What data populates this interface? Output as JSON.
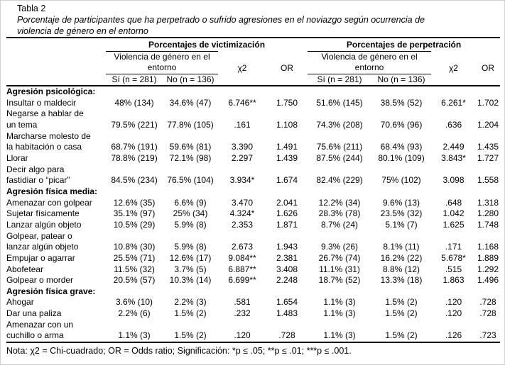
{
  "page": {
    "title": "Tabla 2",
    "caption": "Porcentaje de participantes que ha perpetrado o sufrido agresiones en el noviazgo según ocurrencia de\nviolencia de género en el entorno",
    "note": "Nota: χ2 = Chi-cuadrado; OR = Odds ratio; Significación: *p ≤ .05; **p ≤ .01; ***p ≤ .001."
  },
  "table": {
    "victimization_header": "Porcentajes de victimización",
    "perpetration_header": "Porcentajes de perpetración",
    "environment_spanner": "Violencia de género en el\nentorno",
    "chi_label": "χ2",
    "or_label": "OR",
    "yes_label": "Sí (n = 281)",
    "no_label": "No (n = 136)",
    "sections": [
      {
        "label": "Agresión psicológica:",
        "rows": [
          {
            "label": "Insultar o maldecir",
            "cells": [
              "48% (134)",
              "34.6% (47)",
              "6.746**",
              "1.750",
              "51.6% (145)",
              "38.5% (52)",
              "6.261*",
              "1.702"
            ]
          },
          {
            "label": "Negarse a hablar de\nun tema",
            "cells": [
              "79.5% (221)",
              "77.8% (105)",
              ".161",
              "1.108",
              "74.3% (208)",
              "70.6% (96)",
              ".636",
              "1.204"
            ]
          },
          {
            "label": "Marcharse molesto de\nla habitación o casa",
            "cells": [
              "68.7% (191)",
              "59.6% (81)",
              "3.390",
              "1.491",
              "75.6% (211)",
              "68.4% (93)",
              "2.449",
              "1.435"
            ]
          },
          {
            "label": "Llorar",
            "cells": [
              "78.8% (219)",
              "72.1% (98)",
              "2.297",
              "1.439",
              "87.5% (244)",
              "80.1% (109)",
              "3.843*",
              "1.727"
            ]
          },
          {
            "label": "Decir algo para\nfastidiar o “picar”",
            "cells": [
              "84.5% (234)",
              "76.5% (104)",
              "3.934*",
              "1.674",
              "82.4% (229)",
              "75% (102)",
              "3.098",
              "1.558"
            ]
          }
        ]
      },
      {
        "label": "Agresión física media:",
        "rows": [
          {
            "label": "Amenazar con golpear",
            "cells": [
              "12.6% (35)",
              "6.6% (9)",
              "3.470",
              "2.041",
              "12.2% (34)",
              "9.6% (13)",
              ".648",
              "1.318"
            ]
          },
          {
            "label": "Sujetar físicamente",
            "cells": [
              "35.1% (97)",
              "25% (34)",
              "4.324*",
              "1.626",
              "28.3% (78)",
              "23.5% (32)",
              "1.042",
              "1.280"
            ]
          },
          {
            "label": "Lanzar algún objeto",
            "cells": [
              "10.5% (29)",
              "5.9% (8)",
              "2.353",
              "1.871",
              "8.7% (24)",
              "5.1% (7)",
              "1.625",
              "1.748"
            ]
          },
          {
            "label": "Golpear, patear o\nlanzar algún objeto",
            "cells": [
              "10.8% (30)",
              "5.9% (8)",
              "2.673",
              "1.943",
              "9.3% (26)",
              "8.1% (11)",
              ".171",
              "1.168"
            ]
          },
          {
            "label": "Empujar o agarrar",
            "cells": [
              "25.5% (71)",
              "12.6% (17)",
              "9.084**",
              "2.381",
              "26.7% (74)",
              "16.2% (22)",
              "5.678*",
              "1.889"
            ]
          },
          {
            "label": "Abofetear",
            "cells": [
              "11.5% (32)",
              "3.7% (5)",
              "6.887**",
              "3.408",
              "11.1% (31)",
              "8.8% (12)",
              ".515",
              "1.292"
            ]
          },
          {
            "label": "Golpear o morder",
            "cells": [
              "20.5% (57)",
              "10.3% (14)",
              "6.699**",
              "2.248",
              "18.7% (52)",
              "13.3% (18)",
              "1.863",
              "1.496"
            ]
          }
        ]
      },
      {
        "label": "Agresión física grave:",
        "rows": [
          {
            "label": "Ahogar",
            "cells": [
              "3.6% (10)",
              "2.2% (3)",
              ".581",
              "1.654",
              "1.1% (3)",
              "1.5% (2)",
              ".120",
              ".728"
            ]
          },
          {
            "label": "Dar una paliza",
            "cells": [
              "2.2% (6)",
              "1.5% (2)",
              ".232",
              "1.483",
              "1.1% (3)",
              "1.5% (2)",
              ".120",
              ".728"
            ]
          },
          {
            "label": "Amenazar con un\ncuchillo o arma",
            "cells": [
              "1.1% (3)",
              "1.5% (2)",
              ".120",
              ".728",
              "1.1% (3)",
              "1.5% (2)",
              ".126",
              ".723"
            ]
          }
        ]
      }
    ]
  }
}
